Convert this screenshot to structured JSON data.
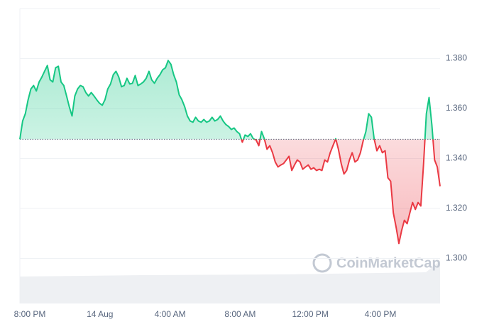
{
  "chart_data": {
    "type": "line",
    "watermark": "CoinMarketCap",
    "x_labels": [
      "8:00 PM",
      "14 Aug",
      "4:00 AM",
      "8:00 AM",
      "12:00 PM",
      "4:00 PM"
    ],
    "baseline": 1.3477,
    "up_color": "#16c784",
    "down_color": "#ea3943",
    "ylim": [
      1.282,
      1.4
    ],
    "yticks": [
      {
        "value": 1.3,
        "label": "1.300"
      },
      {
        "value": 1.32,
        "label": "1.320"
      },
      {
        "value": 1.34,
        "label": "1.340"
      },
      {
        "value": 1.36,
        "label": "1.360"
      },
      {
        "value": 1.38,
        "label": "1.380"
      }
    ],
    "grid": true,
    "values": [
      1.3477,
      1.355,
      1.3579,
      1.3635,
      1.3678,
      1.3692,
      1.367,
      1.3706,
      1.3726,
      1.3749,
      1.3772,
      1.3715,
      1.3706,
      1.3763,
      1.3769,
      1.3706,
      1.3692,
      1.365,
      1.3607,
      1.357,
      1.365,
      1.3678,
      1.3692,
      1.3687,
      1.3664,
      1.365,
      1.3664,
      1.365,
      1.3635,
      1.3621,
      1.3613,
      1.3635,
      1.3678,
      1.3698,
      1.3735,
      1.3749,
      1.3726,
      1.3687,
      1.3692,
      1.3721,
      1.3698,
      1.3701,
      1.3732,
      1.3692,
      1.3698,
      1.3706,
      1.3721,
      1.3749,
      1.3715,
      1.3701,
      1.3721,
      1.3735,
      1.3755,
      1.3763,
      1.3792,
      1.3777,
      1.3735,
      1.3706,
      1.3655,
      1.3635,
      1.3607,
      1.357,
      1.355,
      1.3545,
      1.3565,
      1.355,
      1.3545,
      1.3556,
      1.3545,
      1.355,
      1.3565,
      1.355,
      1.3556,
      1.357,
      1.355,
      1.3536,
      1.3528,
      1.3516,
      1.3522,
      1.3508,
      1.3499,
      1.3465,
      1.3494,
      1.3488,
      1.3499,
      1.3479,
      1.3474,
      1.3451,
      1.3508,
      1.3479,
      1.3437,
      1.3451,
      1.3423,
      1.3386,
      1.3366,
      1.3374,
      1.338,
      1.3394,
      1.3409,
      1.3352,
      1.3374,
      1.3394,
      1.3386,
      1.3357,
      1.3366,
      1.3374,
      1.3357,
      1.3363,
      1.3352,
      1.3357,
      1.3352,
      1.3394,
      1.3386,
      1.3423,
      1.3451,
      1.3479,
      1.3437,
      1.338,
      1.3338,
      1.3352,
      1.3394,
      1.3423,
      1.3386,
      1.3394,
      1.3423,
      1.3471,
      1.3508,
      1.3579,
      1.3565,
      1.3479,
      1.3431,
      1.3451,
      1.3423,
      1.3431,
      1.3323,
      1.3309,
      1.3182,
      1.3125,
      1.306,
      1.3111,
      1.3153,
      1.3139,
      1.3182,
      1.3224,
      1.3196,
      1.3224,
      1.321,
      1.338,
      1.3579,
      1.3644,
      1.3536,
      1.3394,
      1.3366,
      1.3289
    ]
  }
}
